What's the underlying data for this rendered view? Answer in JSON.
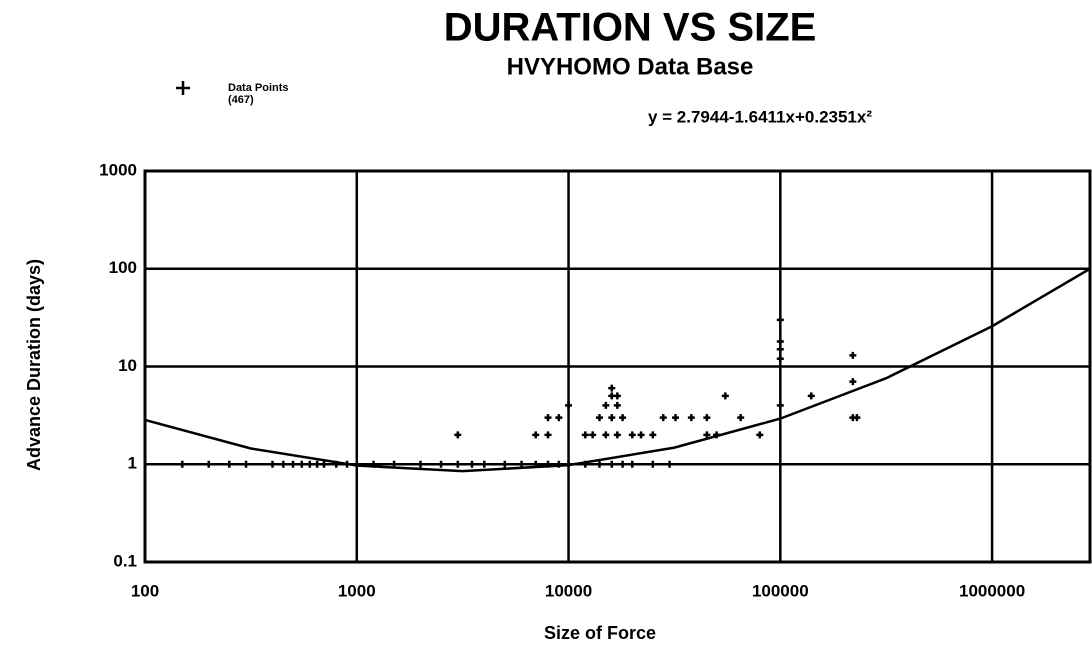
{
  "chart_data": {
    "type": "scatter",
    "title": "DURATION VS SIZE",
    "subtitle": "HVYHOMO Data Base",
    "annotation": "y = 2.7944-1.6411x+0.2351x²",
    "legend_note": "(467)",
    "x_label": "Size of Force",
    "y_label": "Advance Duration (days)",
    "xscale": "log",
    "yscale": "log",
    "grid": true,
    "xlim": [
      100,
      2900000
    ],
    "ylim": [
      0.1,
      1000
    ],
    "xticks": [
      100,
      1000,
      10000,
      100000,
      1000000
    ],
    "yticks": [
      0.1,
      1,
      10,
      100,
      1000
    ],
    "series": [
      {
        "name": "Data Points",
        "color": "#000000",
        "x": [
          150,
          200,
          250,
          300,
          400,
          450,
          500,
          550,
          600,
          650,
          700,
          800,
          900,
          1000,
          1200,
          1500,
          2000,
          2500,
          3000,
          3500,
          4000,
          5000,
          6000,
          7000,
          8000,
          9000,
          10000,
          12000,
          14000,
          16000,
          18000,
          20000,
          25000,
          30000,
          3000,
          7000,
          8000,
          12000,
          13000,
          15000,
          17000,
          20000,
          22000,
          25000,
          45000,
          50000,
          80000,
          8000,
          9000,
          14000,
          16000,
          18000,
          28000,
          32000,
          38000,
          45000,
          65000,
          220000,
          230000,
          10000,
          15000,
          17000,
          100000,
          16000,
          17000,
          55000,
          140000,
          16000,
          220000,
          220000,
          100000,
          100000,
          100000,
          100000
        ],
        "values": [
          1,
          1,
          1,
          1,
          1,
          1,
          1,
          1,
          1,
          1,
          1,
          1,
          1,
          1,
          1,
          1,
          1,
          1,
          1,
          1,
          1,
          1,
          1,
          1,
          1,
          1,
          1,
          1,
          1,
          1,
          1,
          1,
          1,
          1,
          2,
          2,
          2,
          2,
          2,
          2,
          2,
          2,
          2,
          2,
          2,
          2,
          2,
          3,
          3,
          3,
          3,
          3,
          3,
          3,
          3,
          3,
          3,
          3,
          3,
          4,
          4,
          4,
          4,
          5,
          5,
          5,
          5,
          6,
          7,
          13,
          12,
          15,
          18,
          30
        ]
      }
    ],
    "fit": {
      "color": "#000000",
      "x": [
        100,
        316,
        1000,
        3162,
        10000,
        31623,
        100000,
        316228,
        1000000,
        2900000
      ],
      "values": [
        2.84,
        1.45,
        0.97,
        0.85,
        0.98,
        1.48,
        2.93,
        7.59,
        25.8,
        100
      ]
    }
  }
}
